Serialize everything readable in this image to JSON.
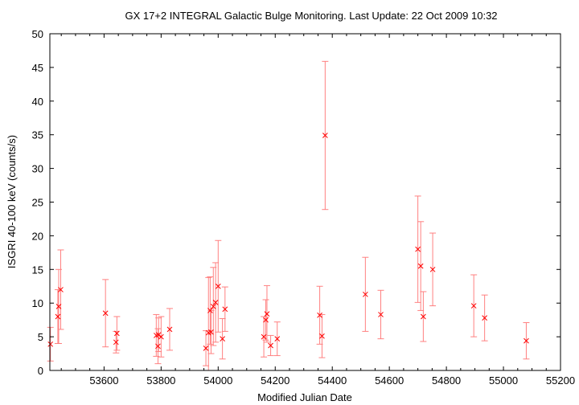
{
  "chart_data": {
    "type": "scatter",
    "title": "GX 17+2   INTEGRAL Galactic Bulge Monitoring.  Last Update: 22 Oct 2009 10:32",
    "xlabel": "Modified Julian Date",
    "ylabel": "ISGRI 40-100 keV (counts/s)",
    "xlim": [
      53410,
      55200
    ],
    "ylim": [
      0,
      50
    ],
    "xticks": [
      53600,
      53800,
      54000,
      54200,
      54400,
      54600,
      54800,
      55000,
      55200
    ],
    "yticks": [
      0,
      5,
      10,
      15,
      20,
      25,
      30,
      35,
      40,
      45,
      50
    ],
    "grid": false,
    "legend": "none",
    "marker_color": "#ff0000",
    "errorbar_color": "#ff8080",
    "points": [
      {
        "x": 53412,
        "y": 3.9,
        "err": 2.5
      },
      {
        "x": 53438,
        "y": 8.0,
        "err": 4.0
      },
      {
        "x": 53441,
        "y": 9.5,
        "err": 5.5
      },
      {
        "x": 53448,
        "y": 12.0,
        "err": 5.9
      },
      {
        "x": 53605,
        "y": 8.5,
        "err": 5.0
      },
      {
        "x": 53642,
        "y": 4.2,
        "err": 1.6
      },
      {
        "x": 53645,
        "y": 5.5,
        "err": 2.5
      },
      {
        "x": 53783,
        "y": 5.2,
        "err": 3.1
      },
      {
        "x": 53789,
        "y": 3.6,
        "err": 2.6
      },
      {
        "x": 53791,
        "y": 5.3,
        "err": 2.5
      },
      {
        "x": 53800,
        "y": 5.0,
        "err": 3.0
      },
      {
        "x": 53830,
        "y": 6.1,
        "err": 3.1
      },
      {
        "x": 53957,
        "y": 3.3,
        "err": 2.6
      },
      {
        "x": 53966,
        "y": 5.6,
        "err": 8.2
      },
      {
        "x": 53972,
        "y": 8.9,
        "err": 5.0
      },
      {
        "x": 53975,
        "y": 5.7,
        "err": 3.2
      },
      {
        "x": 53983,
        "y": 9.5,
        "err": 5.8
      },
      {
        "x": 53991,
        "y": 10.1,
        "err": 5.9
      },
      {
        "x": 54000,
        "y": 12.5,
        "err": 6.8
      },
      {
        "x": 54015,
        "y": 4.7,
        "err": 3.0
      },
      {
        "x": 54024,
        "y": 9.1,
        "err": 3.3
      },
      {
        "x": 54160,
        "y": 5.0,
        "err": 3.0
      },
      {
        "x": 54167,
        "y": 7.5,
        "err": 3.0
      },
      {
        "x": 54171,
        "y": 8.4,
        "err": 4.2
      },
      {
        "x": 54184,
        "y": 3.7,
        "err": 1.5
      },
      {
        "x": 54207,
        "y": 4.7,
        "err": 2.5
      },
      {
        "x": 54356,
        "y": 8.2,
        "err": 4.3
      },
      {
        "x": 54364,
        "y": 5.1,
        "err": 3.2
      },
      {
        "x": 54375,
        "y": 34.9,
        "err": 11.0
      },
      {
        "x": 54516,
        "y": 11.3,
        "err": 5.5
      },
      {
        "x": 54570,
        "y": 8.3,
        "err": 3.6
      },
      {
        "x": 54700,
        "y": 18.0,
        "err": 7.9
      },
      {
        "x": 54710,
        "y": 15.5,
        "err": 6.6
      },
      {
        "x": 54719,
        "y": 8.0,
        "err": 3.7
      },
      {
        "x": 54752,
        "y": 15.0,
        "err": 5.4
      },
      {
        "x": 54896,
        "y": 9.6,
        "err": 4.6
      },
      {
        "x": 54934,
        "y": 7.8,
        "err": 3.4
      },
      {
        "x": 55080,
        "y": 4.4,
        "err": 2.7
      }
    ]
  }
}
